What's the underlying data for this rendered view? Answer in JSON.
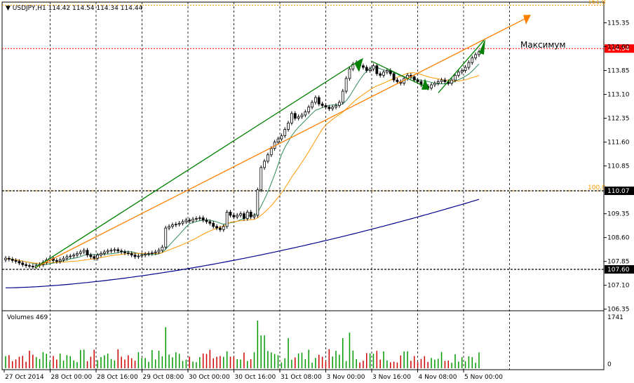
{
  "chart_data": {
    "type": "candlestick",
    "symbol": "USDJPY,H1",
    "title": "USDJPY,H1",
    "ohlc_header": [
      "114.42",
      "114.54",
      "114.34",
      "114.44"
    ],
    "ylim": [
      106.3,
      116.0
    ],
    "y_ticks": [
      115.35,
      114.6,
      113.85,
      113.1,
      112.35,
      111.6,
      110.85,
      109.35,
      108.6,
      107.85,
      107.1,
      106.35
    ],
    "x_ticks": [
      "27 Oct 2014",
      "28 Oct 00:00",
      "28 Oct 16:00",
      "29 Oct 08:00",
      "30 Oct 00:00",
      "30 Oct 16:00",
      "31 Oct 08:00",
      "3 Nov 00:00",
      "3 Nov 16:00",
      "4 Nov 08:00",
      "5 Nov 00:00"
    ],
    "levels": [
      {
        "label": "161.8",
        "value": 115.9,
        "color": "#ff9900",
        "style": "dotted"
      },
      {
        "label": "100.0",
        "value": 110.07,
        "color": "#ff9900",
        "style": "dotted"
      },
      {
        "price": "114.54",
        "value": 114.54,
        "color": "#ff0000",
        "style": "dotted"
      },
      {
        "price": "110.07",
        "value": 110.07,
        "color": "#000000",
        "style": "dotted"
      },
      {
        "price": "107.60",
        "value": 107.6,
        "color": "#000000",
        "style": "dotted"
      }
    ],
    "annotation": "Максимум",
    "volume_panel": {
      "label": "Volumes 469",
      "ticks": [
        "1741",
        "0"
      ]
    },
    "colors": {
      "bull": "#000000",
      "bear": "#000000",
      "bull_volume": "#009900",
      "bear_volume": "#cc0000",
      "ma_fast": "#2e8b57",
      "ma_mid": "#ff9900",
      "ma_slow": "#00008b",
      "trend_green": "#008000",
      "trend_orange": "#ff7f00"
    },
    "close_series": [
      107.95,
      107.92,
      107.88,
      107.85,
      107.8,
      107.75,
      107.72,
      107.7,
      107.68,
      107.72,
      107.75,
      107.82,
      107.9,
      107.95,
      107.88,
      107.85,
      107.9,
      107.95,
      108.0,
      108.02,
      108.05,
      108.1,
      108.15,
      108.2,
      108.05,
      108.0,
      107.95,
      108.05,
      108.1,
      108.15,
      108.18,
      108.2,
      108.22,
      108.18,
      108.15,
      108.12,
      108.1,
      108.05,
      108.0,
      108.02,
      108.05,
      108.08,
      108.1,
      108.12,
      108.15,
      108.2,
      108.3,
      108.9,
      108.95,
      109.0,
      109.02,
      109.05,
      109.1,
      109.15,
      109.12,
      109.18,
      109.2,
      109.22,
      109.15,
      109.1,
      109.05,
      108.95,
      108.9,
      108.85,
      108.95,
      109.4,
      109.3,
      109.25,
      109.3,
      109.35,
      109.2,
      109.4,
      109.25,
      109.3,
      110.1,
      110.8,
      111.0,
      111.2,
      111.4,
      111.6,
      111.7,
      111.8,
      112.0,
      112.2,
      112.5,
      112.35,
      112.4,
      112.45,
      112.55,
      112.7,
      112.85,
      113.0,
      112.8,
      112.75,
      112.7,
      112.65,
      112.7,
      112.75,
      112.85,
      113.2,
      113.6,
      113.9,
      114.05,
      114.1,
      114.0,
      113.95,
      113.85,
      113.9,
      114.0,
      113.75,
      113.7,
      113.8,
      113.85,
      113.75,
      113.55,
      113.5,
      113.45,
      113.6,
      113.7,
      113.65,
      113.55,
      113.5,
      113.4,
      113.35,
      113.3,
      113.4,
      113.45,
      113.5,
      113.55,
      113.5,
      113.45,
      113.55,
      113.7,
      113.8,
      113.85,
      113.95,
      114.1,
      114.25,
      114.35,
      114.44
    ]
  }
}
